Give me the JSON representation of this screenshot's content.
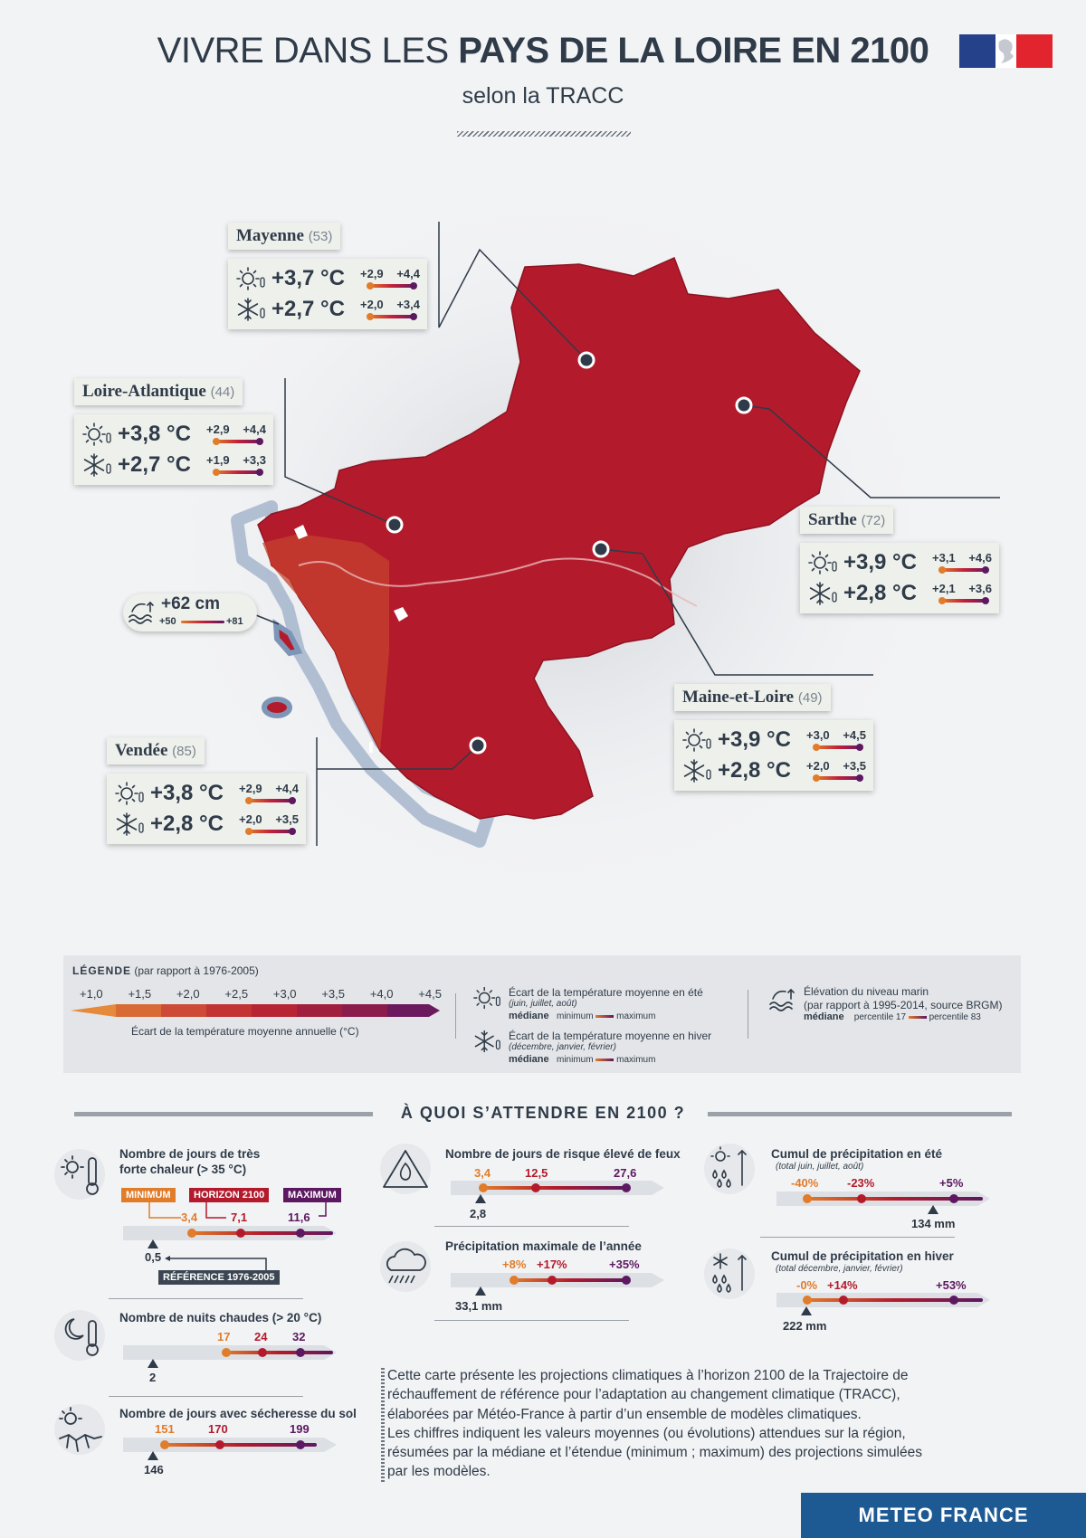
{
  "header": {
    "title_light": "VIVRE DANS LES ",
    "title_bold": "PAYS DE LA LOIRE EN 2100",
    "subtitle": "selon la TRACC"
  },
  "colors": {
    "map_red": "#b31b2c",
    "orange": "#e07c2a",
    "purple": "#5c1860",
    "navy": "#1d5a94"
  },
  "departments": {
    "mayenne": {
      "name": "Mayenne",
      "code": "(53)",
      "summer": "+3,7 °C",
      "summer_min": "+2,9",
      "summer_max": "+4,4",
      "winter": "+2,7 °C",
      "winter_min": "+2,0",
      "winter_max": "+3,4"
    },
    "loire_atlantique": {
      "name": "Loire-Atlantique",
      "code": "(44)",
      "summer": "+3,8 °C",
      "summer_min": "+2,9",
      "summer_max": "+4,4",
      "winter": "+2,7 °C",
      "winter_min": "+1,9",
      "winter_max": "+3,3"
    },
    "sarthe": {
      "name": "Sarthe",
      "code": "(72)",
      "summer": "+3,9 °C",
      "summer_min": "+3,1",
      "summer_max": "+4,6",
      "winter": "+2,8 °C",
      "winter_min": "+2,1",
      "winter_max": "+3,6"
    },
    "maine_et_loire": {
      "name": "Maine-et-Loire",
      "code": "(49)",
      "summer": "+3,9 °C",
      "summer_min": "+3,0",
      "summer_max": "+4,5",
      "winter": "+2,8 °C",
      "winter_min": "+2,0",
      "winter_max": "+3,5"
    },
    "vendee": {
      "name": "Vendée",
      "code": "(85)",
      "summer": "+3,8 °C",
      "summer_min": "+2,9",
      "summer_max": "+4,4",
      "winter": "+2,8 °C",
      "winter_min": "+2,0",
      "winter_max": "+3,5"
    }
  },
  "sea_level": {
    "median": "+62 cm",
    "p17": "+50",
    "p83": "+81"
  },
  "legend": {
    "title": "LÉGENDE",
    "title_note": "(par rapport à 1976-2005)",
    "scale": [
      "+1,0",
      "+1,5",
      "+2,0",
      "+2,5",
      "+3,0",
      "+3,5",
      "+4,0",
      "+4,5"
    ],
    "scale_colors": [
      "#e6893a",
      "#d86a36",
      "#cc4a36",
      "#c23333",
      "#b72535",
      "#a11f3e",
      "#8a1d4c",
      "#6c1a5e"
    ],
    "scale_caption": "Écart de la température moyenne annuelle (°C)",
    "summer_title": "Écart de la température moyenne en été",
    "summer_months": "(juin, juillet, août)",
    "winter_title": "Écart de la température moyenne en hiver",
    "winter_months": "(décembre, janvier, février)",
    "median": "médiane",
    "minimum": "minimum",
    "maximum": "maximum",
    "sea_title": "Élévation du niveau marin",
    "sea_note": "(par rapport à 1995-2014, source BRGM)",
    "p17": "percentile 17",
    "p83": "percentile 83"
  },
  "section_title": "À QUOI S’ATTENDRE EN 2100 ?",
  "indicators": {
    "hot_days": {
      "title1": "Nombre de jours de très",
      "title2": "forte chaleur (> 35 °C)",
      "tag_min": "MINIMUM",
      "tag_h": "HORIZON 2100",
      "tag_max": "MAXIMUM",
      "min": "3,4",
      "med": "7,1",
      "max": "11,6",
      "ref": "0,5",
      "ref_tag": "RÉFÉRENCE 1976-2005",
      "v_min": 3.4,
      "v_med": 7.1,
      "v_max": 11.6,
      "v_ref": 0.5
    },
    "warm_nights": {
      "title": "Nombre de nuits chaudes (> 20 °C)",
      "min": "17",
      "med": "24",
      "max": "32",
      "ref": "2",
      "v_min": 17,
      "v_med": 24,
      "v_max": 32,
      "v_ref": 2
    },
    "drought": {
      "title": "Nombre de jours avec sécheresse du sol",
      "min": "151",
      "med": "170",
      "max": "199",
      "ref": "146"
    },
    "fire": {
      "title": "Nombre de jours de risque élevé de feux",
      "min": "3,4",
      "med": "12,5",
      "max": "27,6",
      "ref": "2,8"
    },
    "max_precip": {
      "title": "Précipitation maximale de l’année",
      "min": "+8%",
      "med": "+17%",
      "max": "+35%",
      "ref": "33,1 mm"
    },
    "summer_precip": {
      "title": "Cumul de précipitation en été",
      "sub": "(total juin, juillet, août)",
      "min": "-40%",
      "med": "-23%",
      "max": "+5%",
      "ref": "134 mm"
    },
    "winter_precip": {
      "title": "Cumul de précipitation en hiver",
      "sub": "(total décembre, janvier, février)",
      "min": "-0%",
      "med": "+14%",
      "max": "+53%",
      "ref": "222 mm"
    }
  },
  "paragraph": {
    "l1": "Cette carte présente les projections climatiques à l’horizon 2100 de la Trajectoire de",
    "l2": "réchauffement de référence pour l’adaptation au changement climatique (TRACC),",
    "l3": "élaborées par Météo-France à partir d’un ensemble de modèles climatiques.",
    "l4": "Les chiffres indiquent les valeurs moyennes (ou évolutions) attendues sur la région,",
    "l5": "résumées par la médiane et l’étendue (minimum ; maximum) des projections simulées",
    "l6": "par les modèles."
  },
  "footer": {
    "brand": "METEO FRANCE"
  }
}
